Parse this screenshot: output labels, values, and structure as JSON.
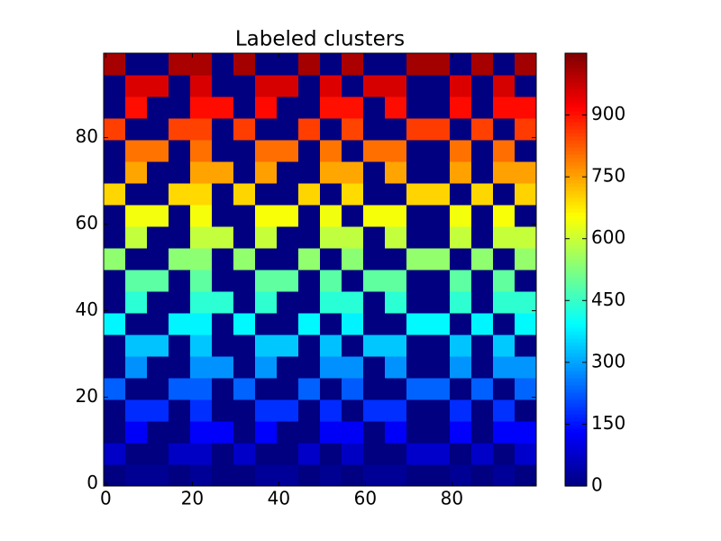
{
  "chart_data": {
    "type": "heatmap",
    "title": "Labeled clusters",
    "colormap": "jet",
    "origin": "lower",
    "xlim": [
      -0.5,
      99.5
    ],
    "ylim": [
      -0.5,
      99.5
    ],
    "xticks": [
      0,
      20,
      40,
      60,
      80
    ],
    "yticks": [
      0,
      20,
      40,
      60,
      80
    ],
    "zlim": [
      0,
      1050
    ],
    "colorbar_ticks": [
      0,
      150,
      300,
      450,
      600,
      750,
      900
    ],
    "z": [
      [
        0,
        20,
        20,
        0,
        23,
        0,
        0,
        25,
        25,
        0,
        18,
        0,
        24,
        24,
        0,
        0,
        21,
        0,
        26,
        0
      ],
      [
        74,
        0,
        0,
        71,
        71,
        0,
        76,
        0,
        0,
        75,
        0,
        69,
        0,
        0,
        77,
        77,
        0,
        73,
        0,
        78
      ],
      [
        0,
        125,
        0,
        0,
        127,
        127,
        0,
        130,
        0,
        0,
        123,
        123,
        0,
        126,
        0,
        0,
        128,
        0,
        129,
        129
      ],
      [
        0,
        176,
        176,
        0,
        179,
        0,
        0,
        181,
        181,
        0,
        174,
        0,
        180,
        180,
        0,
        0,
        177,
        0,
        182,
        0
      ],
      [
        230,
        0,
        0,
        227,
        227,
        0,
        232,
        0,
        0,
        231,
        0,
        225,
        0,
        0,
        233,
        233,
        0,
        229,
        0,
        234
      ],
      [
        0,
        281,
        0,
        0,
        283,
        283,
        0,
        286,
        0,
        0,
        279,
        279,
        0,
        282,
        0,
        0,
        284,
        0,
        285,
        285
      ],
      [
        0,
        332,
        332,
        0,
        335,
        0,
        0,
        337,
        337,
        0,
        330,
        0,
        336,
        336,
        0,
        0,
        333,
        0,
        338,
        0
      ],
      [
        386,
        0,
        0,
        383,
        383,
        0,
        388,
        0,
        0,
        387,
        0,
        381,
        0,
        0,
        389,
        389,
        0,
        385,
        0,
        390
      ],
      [
        0,
        437,
        0,
        0,
        439,
        439,
        0,
        442,
        0,
        0,
        435,
        435,
        0,
        438,
        0,
        0,
        440,
        0,
        441,
        441
      ],
      [
        0,
        488,
        488,
        0,
        491,
        0,
        0,
        493,
        493,
        0,
        486,
        0,
        492,
        492,
        0,
        0,
        489,
        0,
        494,
        0
      ],
      [
        542,
        0,
        0,
        539,
        539,
        0,
        544,
        0,
        0,
        543,
        0,
        537,
        0,
        0,
        545,
        545,
        0,
        541,
        0,
        546
      ],
      [
        0,
        593,
        0,
        0,
        595,
        595,
        0,
        598,
        0,
        0,
        591,
        591,
        0,
        594,
        0,
        0,
        596,
        0,
        597,
        597
      ],
      [
        0,
        644,
        644,
        0,
        647,
        0,
        0,
        649,
        649,
        0,
        642,
        0,
        648,
        648,
        0,
        0,
        645,
        0,
        650,
        0
      ],
      [
        698,
        0,
        0,
        695,
        695,
        0,
        700,
        0,
        0,
        699,
        0,
        693,
        0,
        0,
        701,
        701,
        0,
        697,
        0,
        702
      ],
      [
        0,
        749,
        0,
        0,
        751,
        751,
        0,
        754,
        0,
        0,
        747,
        747,
        0,
        750,
        0,
        0,
        752,
        0,
        753,
        753
      ],
      [
        0,
        800,
        800,
        0,
        803,
        0,
        0,
        805,
        805,
        0,
        798,
        0,
        804,
        804,
        0,
        0,
        801,
        0,
        806,
        0
      ],
      [
        854,
        0,
        0,
        851,
        851,
        0,
        856,
        0,
        0,
        855,
        0,
        849,
        0,
        0,
        857,
        857,
        0,
        853,
        0,
        858
      ],
      [
        0,
        905,
        0,
        0,
        907,
        907,
        0,
        910,
        0,
        0,
        903,
        903,
        0,
        906,
        0,
        0,
        908,
        0,
        909,
        909
      ],
      [
        0,
        956,
        956,
        0,
        959,
        0,
        0,
        961,
        961,
        0,
        954,
        0,
        960,
        960,
        0,
        0,
        957,
        0,
        962,
        0
      ],
      [
        1010,
        0,
        0,
        1007,
        1007,
        0,
        1012,
        0,
        0,
        1011,
        0,
        1005,
        0,
        0,
        1013,
        1013,
        0,
        1009,
        0,
        1014
      ]
    ]
  }
}
